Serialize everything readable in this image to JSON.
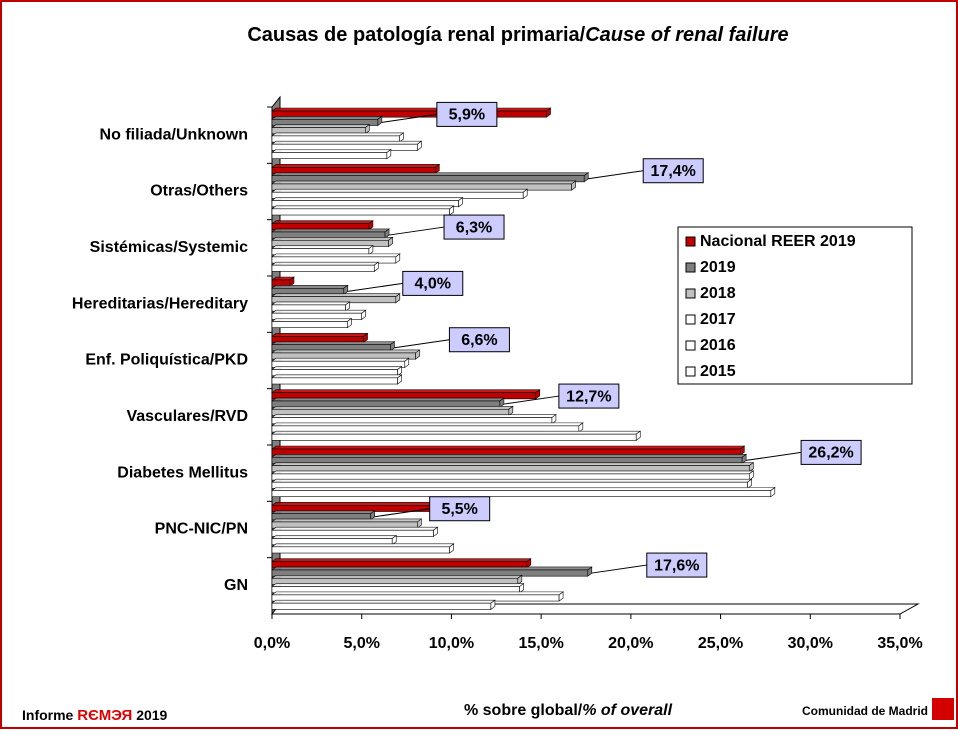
{
  "chart_data": {
    "type": "bar",
    "orientation": "horizontal",
    "title": "Causas de patología renal primaria/",
    "title_italic": "Cause of renal failure",
    "x_label": "% sobre global/",
    "x_label_italic": "% of overall",
    "categories": [
      "No filiada/Unknown",
      "Otras/Others",
      "Sistémicas/Systemic",
      "Hereditarias/Hereditary",
      "Enf. Poliquística/PKD",
      "Vasculares/RVD",
      "Diabetes Mellitus",
      "PNC-NIC/PN",
      "GN"
    ],
    "series": [
      {
        "name": "Nacional REER 2019",
        "color": "#c00000",
        "values": [
          15.3,
          9.1,
          5.4,
          1.0,
          5.1,
          14.7,
          26.1,
          9.3,
          14.2
        ]
      },
      {
        "name": "2019",
        "color": "#7f7f7f",
        "values": [
          5.9,
          17.4,
          6.3,
          4.0,
          6.6,
          12.7,
          26.2,
          5.5,
          17.6
        ],
        "value_labels": [
          "5,9%",
          "17,4%",
          "6,3%",
          "4,0%",
          "6,6%",
          "12,7%",
          "26,2%",
          "5,5%",
          "17,6%"
        ]
      },
      {
        "name": "2018",
        "color": "#c0c0c0",
        "values": [
          5.2,
          16.7,
          6.5,
          6.9,
          8.0,
          13.2,
          26.6,
          8.1,
          13.7
        ]
      },
      {
        "name": "2017",
        "color": "#ffffff",
        "values": [
          7.1,
          14.0,
          5.4,
          4.1,
          7.4,
          15.6,
          26.6,
          9.0,
          13.8
        ]
      },
      {
        "name": "2016",
        "color": "#ffffff",
        "values": [
          8.1,
          10.4,
          6.9,
          5.0,
          7.0,
          17.1,
          26.5,
          6.7,
          16.0
        ]
      },
      {
        "name": "2015",
        "color": "#ffffff",
        "values": [
          6.4,
          9.9,
          5.7,
          4.2,
          7.0,
          20.3,
          27.8,
          9.9,
          12.2
        ]
      }
    ],
    "xlim": [
      0,
      35
    ],
    "xticks": [
      {
        "value": 0,
        "label": "0,0%"
      },
      {
        "value": 5,
        "label": "5,0%"
      },
      {
        "value": 10,
        "label": "10,0%"
      },
      {
        "value": 15,
        "label": "15,0%"
      },
      {
        "value": 20,
        "label": "20,0%"
      },
      {
        "value": 25,
        "label": "25,0%"
      },
      {
        "value": 30,
        "label": "30,0%"
      },
      {
        "value": 35,
        "label": "35,0%"
      }
    ],
    "legend": "right",
    "grid": false
  },
  "footer": {
    "report": "Informe",
    "brand": "RЄMЭЯ",
    "year": "2019",
    "organization": "Comunidad de Madrid"
  }
}
